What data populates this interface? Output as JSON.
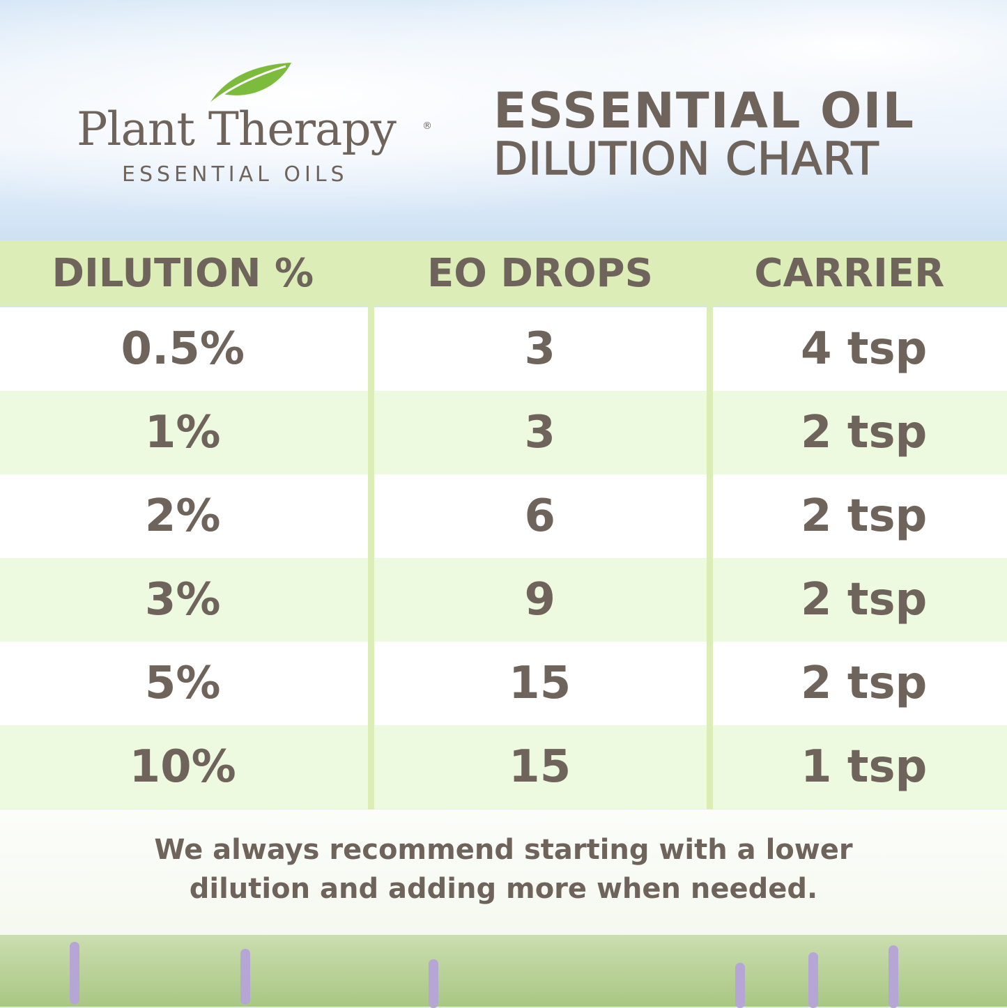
{
  "logo": {
    "brand": "Plant Therapy",
    "registered": "®",
    "tagline": "ESSENTIAL OILS"
  },
  "title": {
    "line1": "ESSENTIAL OIL",
    "line2": "DILUTION CHART"
  },
  "table": {
    "headers": [
      "DILUTION %",
      "EO DROPS",
      "CARRIER"
    ],
    "rows": [
      [
        "0.5%",
        "3",
        "4 tsp"
      ],
      [
        "1%",
        "3",
        "2 tsp"
      ],
      [
        "2%",
        "6",
        "2 tsp"
      ],
      [
        "3%",
        "9",
        "2 tsp"
      ],
      [
        "5%",
        "15",
        "2 tsp"
      ],
      [
        "10%",
        "15",
        "1 tsp"
      ]
    ]
  },
  "footer": {
    "line1": "We always recommend starting with a lower",
    "line2": "dilution and adding more when needed."
  },
  "colors": {
    "text": "#6e645c",
    "header_bg": "#dcedb8",
    "alt_row": "#eefadf",
    "leaf": "#7dbb3c"
  }
}
